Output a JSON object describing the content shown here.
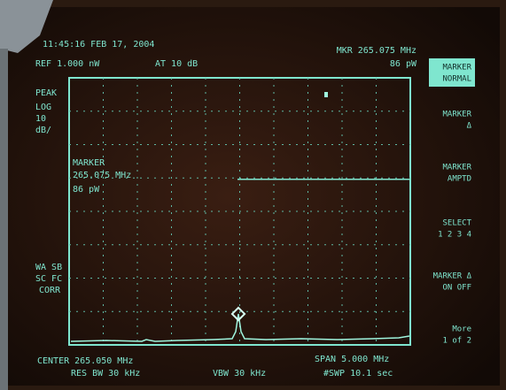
{
  "header": {
    "timestamp": "11:45:16 FEB 17, 2004",
    "ref": "REF 1.000 nW",
    "atten": "AT 10 dB",
    "marker_readout": "MKR 265.075 MHz",
    "marker_level": "86 pW"
  },
  "scale": [
    "PEAK",
    "LOG",
    "10",
    "dB/"
  ],
  "marker_box": [
    "MARKER",
    "265.075 MHz",
    "86 pW"
  ],
  "corrections": [
    "WA SB",
    "SC FC",
    "CORR"
  ],
  "footer": {
    "center": "CENTER 265.050 MHz",
    "res_bw": "RES BW 30 kHz",
    "vbw": "VBW 30 kHz",
    "span": "SPAN 5.000 MHz",
    "sweep": "#SWP 10.1 sec"
  },
  "softkeys": [
    [
      "MARKER",
      "NORMAL"
    ],
    [
      "MARKER",
      "Δ"
    ],
    [
      "MARKER",
      "AMPTD"
    ],
    [
      "SELECT",
      "1 2 3 4"
    ],
    [
      "MARKER Δ",
      "ON OFF"
    ],
    [
      "More",
      "1 of 2"
    ]
  ]
}
